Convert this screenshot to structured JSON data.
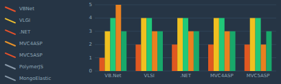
{
  "chart_data": {
    "type": "bar",
    "categories": [
      "VB.Net",
      "VLSI",
      ".NET",
      "MVC4ASP",
      "MVC5ASP"
    ],
    "series": [
      {
        "color": "#e05820",
        "values": [
          1,
          2,
          2,
          2,
          2
        ]
      },
      {
        "color": "#f0c020",
        "values": [
          3,
          4,
          4,
          4,
          4
        ]
      },
      {
        "color": "#20c878",
        "values": [
          4,
          4,
          4,
          4,
          4
        ]
      },
      {
        "color": "#e88020",
        "values": [
          5,
          3,
          3,
          3,
          2
        ]
      },
      {
        "color": "#18a86a",
        "values": [
          3,
          3,
          3,
          3,
          3
        ]
      }
    ],
    "annotations": [
      {
        "text": "VBNet",
        "color": "#e8522a"
      },
      {
        "text": "VLGI",
        "color": "#f0c030"
      },
      {
        "text": ".NET",
        "color": "#e8522a"
      },
      {
        "text": "MVC4ASP",
        "color": "#e8922a"
      },
      {
        "text": "MVC5ASP",
        "color": "#e8522a"
      },
      {
        "text": "PolymerJS",
        "color": "#8a9aaa"
      },
      {
        "text": "MongoElastic",
        "color": "#8a9aaa"
      }
    ],
    "ylim": [
      0,
      5
    ],
    "yticks": [
      0,
      1,
      2,
      3,
      4,
      5
    ],
    "grid": true
  }
}
